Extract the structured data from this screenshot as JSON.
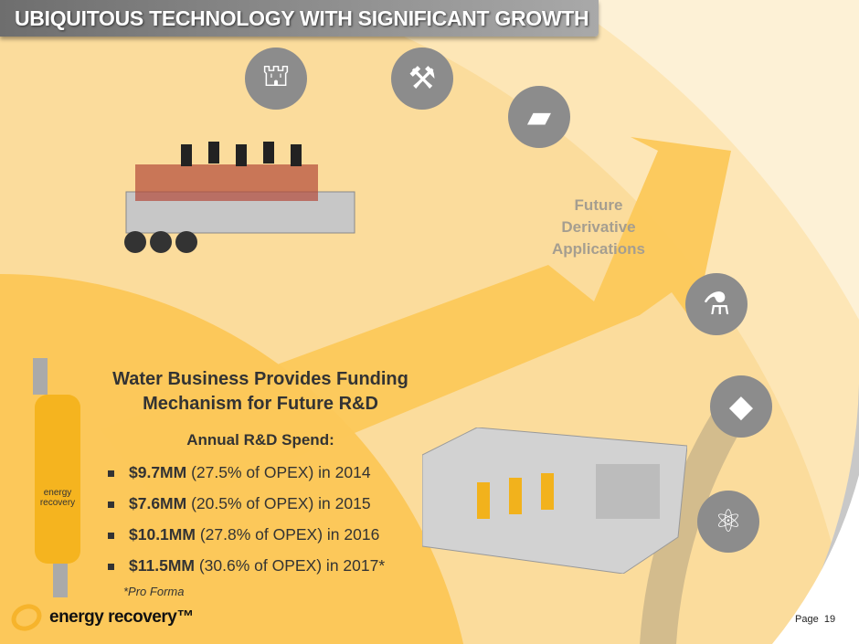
{
  "header": {
    "title": "UBIQUITOUS TECHNOLOGY WITH SIGNIFICANT GROWTH"
  },
  "icons": [
    "oil-rig-icon",
    "mining-tools-icon",
    "gold-bars-icon",
    "flask-icon",
    "rocks-icon",
    "atom-icon"
  ],
  "arrow": {
    "label": "Future Derivative Applications",
    "lines": [
      "Future",
      "Derivative",
      "Applications"
    ]
  },
  "main": {
    "heading_lines": [
      "Water Business Provides Funding",
      "Mechanism for Future R&D"
    ],
    "subheading": "Annual R&D Spend:",
    "items": [
      {
        "amount": "$9.7MM",
        "detail": " (27.5% of OPEX) in 2014"
      },
      {
        "amount": "$7.6MM",
        "detail": " (20.5% of OPEX) in 2015"
      },
      {
        "amount": "$10.1MM",
        "detail": " (27.8% of OPEX) in 2016"
      },
      {
        "amount": "$11.5MM",
        "detail": " (30.6% of OPEX) in 2017*"
      }
    ],
    "footnote": "*Pro Forma"
  },
  "footer": {
    "logo": "energy recovery™",
    "page_label": "Page",
    "page_number": "19"
  },
  "colors": {
    "accent": "#fcc85a",
    "icon_bg": "#8c8c8c",
    "background": "#fdf1d6"
  }
}
